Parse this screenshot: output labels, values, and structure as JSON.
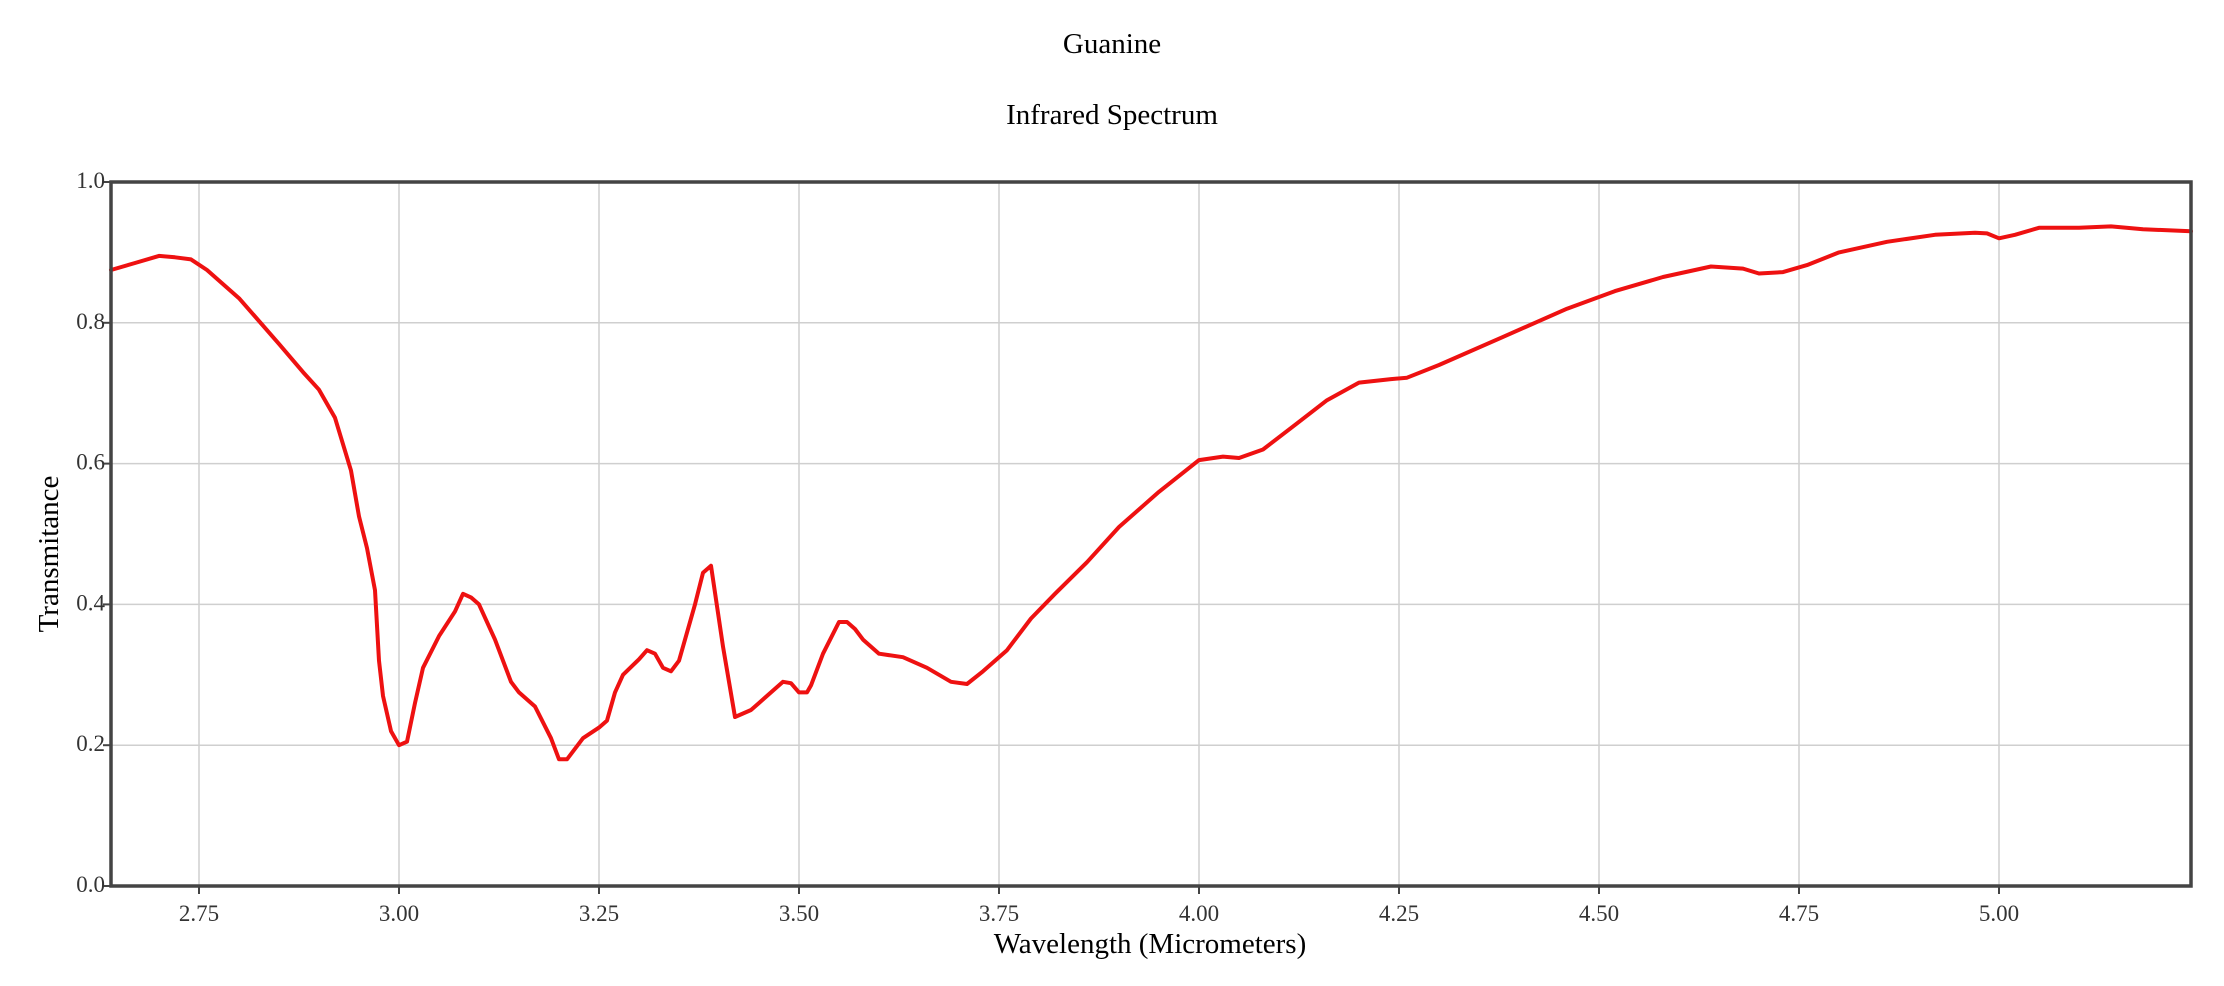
{
  "chart_data": {
    "type": "line",
    "title": "Guanine",
    "subtitle": "Infrared Spectrum",
    "xlabel": "Wavelength (Micrometers)",
    "ylabel": "Transmitance",
    "xlim": [
      2.64,
      5.24
    ],
    "ylim": [
      0.0,
      1.0
    ],
    "x_ticks": [
      2.75,
      3.0,
      3.25,
      3.5,
      3.75,
      4.0,
      4.25,
      4.5,
      4.75,
      5.0
    ],
    "x_tick_labels": [
      "2.75",
      "3.00",
      "3.25",
      "3.50",
      "3.75",
      "4.00",
      "4.25",
      "4.50",
      "4.75",
      "5.00"
    ],
    "y_ticks": [
      0.0,
      0.2,
      0.4,
      0.6,
      0.8,
      1.0
    ],
    "y_tick_labels": [
      "0.0",
      "0.2",
      "0.4",
      "0.6",
      "0.8",
      "1.0"
    ],
    "grid": true,
    "legend": "none",
    "series": [
      {
        "color": "#ee1111",
        "x": [
          2.64,
          2.67,
          2.7,
          2.72,
          2.74,
          2.76,
          2.8,
          2.85,
          2.88,
          2.9,
          2.92,
          2.94,
          2.95,
          2.96,
          2.97,
          2.975,
          2.98,
          2.99,
          3.0,
          3.01,
          3.02,
          3.03,
          3.05,
          3.07,
          3.08,
          3.09,
          3.1,
          3.12,
          3.14,
          3.15,
          3.17,
          3.19,
          3.2,
          3.21,
          3.23,
          3.25,
          3.26,
          3.27,
          3.28,
          3.3,
          3.31,
          3.32,
          3.33,
          3.34,
          3.35,
          3.37,
          3.38,
          3.39,
          3.405,
          3.42,
          3.44,
          3.45,
          3.48,
          3.49,
          3.5,
          3.51,
          3.515,
          3.53,
          3.55,
          3.56,
          3.57,
          3.58,
          3.6,
          3.63,
          3.66,
          3.69,
          3.71,
          3.73,
          3.76,
          3.79,
          3.82,
          3.86,
          3.9,
          3.95,
          4.0,
          4.03,
          4.05,
          4.08,
          4.12,
          4.16,
          4.2,
          4.24,
          4.26,
          4.3,
          4.38,
          4.46,
          4.52,
          4.58,
          4.64,
          4.68,
          4.7,
          4.73,
          4.76,
          4.8,
          4.86,
          4.92,
          4.97,
          4.985,
          5.0,
          5.02,
          5.05,
          5.1,
          5.14,
          5.18,
          5.24
        ],
        "values": [
          0.875,
          0.885,
          0.895,
          0.893,
          0.89,
          0.875,
          0.835,
          0.77,
          0.73,
          0.705,
          0.665,
          0.59,
          0.525,
          0.48,
          0.42,
          0.32,
          0.27,
          0.22,
          0.2,
          0.205,
          0.26,
          0.31,
          0.355,
          0.39,
          0.415,
          0.41,
          0.4,
          0.35,
          0.29,
          0.275,
          0.255,
          0.21,
          0.18,
          0.18,
          0.21,
          0.225,
          0.235,
          0.275,
          0.3,
          0.322,
          0.335,
          0.33,
          0.31,
          0.305,
          0.32,
          0.4,
          0.445,
          0.455,
          0.34,
          0.24,
          0.25,
          0.26,
          0.29,
          0.288,
          0.275,
          0.275,
          0.285,
          0.33,
          0.375,
          0.375,
          0.365,
          0.35,
          0.33,
          0.325,
          0.31,
          0.29,
          0.287,
          0.305,
          0.335,
          0.38,
          0.415,
          0.46,
          0.51,
          0.56,
          0.605,
          0.61,
          0.608,
          0.62,
          0.655,
          0.69,
          0.715,
          0.72,
          0.722,
          0.74,
          0.78,
          0.82,
          0.845,
          0.865,
          0.88,
          0.877,
          0.87,
          0.872,
          0.882,
          0.9,
          0.915,
          0.925,
          0.928,
          0.927,
          0.92,
          0.925,
          0.935,
          0.935,
          0.937,
          0.933,
          0.93
        ]
      }
    ]
  }
}
